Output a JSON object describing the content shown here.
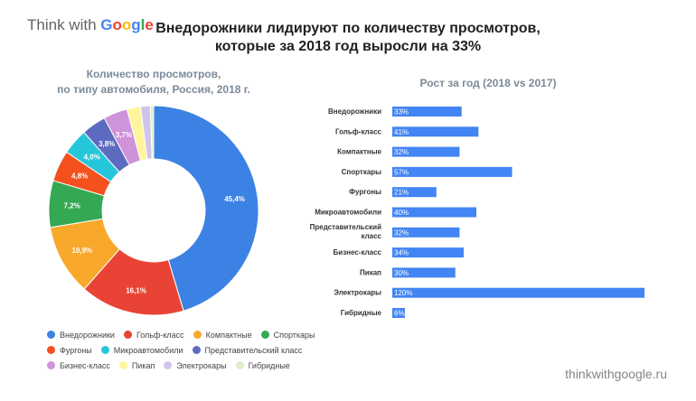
{
  "logo": {
    "part1": "Think with ",
    "part2": "Google"
  },
  "title_line1": "Внедорожники лидируют по количеству просмотров,",
  "title_line2": "которые за 2018 год выросли на 33%",
  "footer": "thinkwithgoogle.ru",
  "chart_data": [
    {
      "type": "pie",
      "donut": true,
      "title_line1": "Количество просмотров,",
      "title_line2": "по типу автомобиля, Россия, 2018 г.",
      "categories": [
        "Внедорожники",
        "Гольф-класс",
        "Компактные",
        "Спорткары",
        "Фургоны",
        "Микроавтомобили",
        "Представительский класс",
        "Бизнес-класс",
        "Пикап",
        "Электрокары",
        "Гибридные"
      ],
      "values": [
        45.4,
        16.1,
        10.9,
        7.2,
        4.8,
        4.0,
        3.8,
        3.7,
        2.1,
        1.5,
        0.5
      ],
      "labels": [
        "45,4%",
        "16,1%",
        "10,9%",
        "7,2%",
        "4,8%",
        "4,0%",
        "3,8%",
        "3,7%",
        "",
        "",
        ""
      ],
      "colors": [
        "#3c82e4",
        "#e94335",
        "#f8a82b",
        "#34a853",
        "#f4511e",
        "#26c6da",
        "#5c6bc0",
        "#ce93d8",
        "#fff59d",
        "#d1c4e9",
        "#dcedc8"
      ],
      "legend": "bottom"
    },
    {
      "type": "bar",
      "orientation": "horizontal",
      "title": "Рост за год (2018 vs 2017)",
      "categories": [
        "Внедорожники",
        "Гольф-класс",
        "Компактные",
        "Спорткары",
        "Фургоны",
        "Микроавтомобили",
        "Представительский класс",
        "Бизнес-класс",
        "Пикап",
        "Электрокары",
        "Гибридные"
      ],
      "values": [
        33,
        41,
        32,
        57,
        21,
        40,
        32,
        34,
        30,
        120,
        6
      ],
      "labels": [
        "33%",
        "41%",
        "32%",
        "57%",
        "21%",
        "40%",
        "32%",
        "34%",
        "30%",
        "120%",
        "6%"
      ],
      "color": "#4285f4"
    }
  ]
}
